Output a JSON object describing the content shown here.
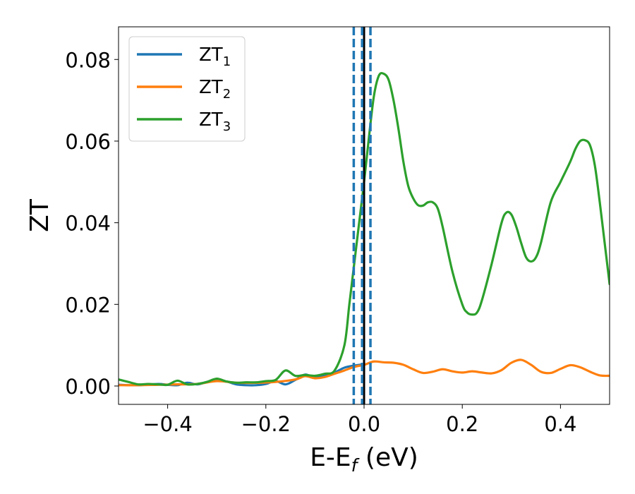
{
  "chart_data": {
    "type": "line",
    "title": "",
    "xlabel": {
      "main": "E-E",
      "sub": "f",
      "unit": " (eV)"
    },
    "ylabel": "ZT",
    "xlim": [
      -0.5,
      0.5
    ],
    "ylim": [
      -0.0045,
      0.088
    ],
    "xticks": [
      -0.4,
      -0.2,
      0.0,
      0.2,
      0.4
    ],
    "xtick_labels": [
      "−0.4",
      "−0.2",
      "0.0",
      "0.2",
      "0.4"
    ],
    "yticks": [
      0.0,
      0.02,
      0.04,
      0.06,
      0.08
    ],
    "ytick_labels": [
      "0.00",
      "0.02",
      "0.04",
      "0.06",
      "0.08"
    ],
    "grid": false,
    "legend_position": "top-left",
    "series": [
      {
        "name": "ZT",
        "subscript": "1",
        "color": "#1f77b4",
        "points": [
          [
            -0.5,
            0.0003
          ],
          [
            -0.46,
            0.0002
          ],
          [
            -0.42,
            0.0005
          ],
          [
            -0.4,
            0.0003
          ],
          [
            -0.38,
            0.0002
          ],
          [
            -0.36,
            0.0008
          ],
          [
            -0.34,
            0.0004
          ],
          [
            -0.32,
            0.001
          ],
          [
            -0.3,
            0.0016
          ],
          [
            -0.28,
            0.0011
          ],
          [
            -0.26,
            0.0004
          ],
          [
            -0.24,
            0.0002
          ],
          [
            -0.22,
            0.0002
          ],
          [
            -0.2,
            0.0005
          ],
          [
            -0.18,
            0.0012
          ],
          [
            -0.16,
            0.0004
          ],
          [
            -0.14,
            0.0015
          ],
          [
            -0.12,
            0.0028
          ],
          [
            -0.1,
            0.002
          ],
          [
            -0.08,
            0.0025
          ],
          [
            -0.06,
            0.0033
          ],
          [
            -0.04,
            0.0045
          ],
          [
            -0.02,
            0.005
          ],
          [
            0.0,
            0.0053
          ]
        ]
      },
      {
        "name": "ZT",
        "subscript": "2",
        "color": "#ff7f0e",
        "points": [
          [
            -0.5,
            0.0002
          ],
          [
            -0.46,
            0.0002
          ],
          [
            -0.42,
            0.0003
          ],
          [
            -0.38,
            0.0004
          ],
          [
            -0.34,
            0.0005
          ],
          [
            -0.3,
            0.0012
          ],
          [
            -0.26,
            0.0008
          ],
          [
            -0.22,
            0.0008
          ],
          [
            -0.18,
            0.001
          ],
          [
            -0.14,
            0.0016
          ],
          [
            -0.12,
            0.0024
          ],
          [
            -0.1,
            0.0019
          ],
          [
            -0.08,
            0.0022
          ],
          [
            -0.06,
            0.003
          ],
          [
            -0.04,
            0.0038
          ],
          [
            -0.02,
            0.0047
          ],
          [
            0.0,
            0.0052
          ],
          [
            0.02,
            0.006
          ],
          [
            0.04,
            0.0058
          ],
          [
            0.06,
            0.0057
          ],
          [
            0.08,
            0.0052
          ],
          [
            0.1,
            0.0041
          ],
          [
            0.12,
            0.0032
          ],
          [
            0.14,
            0.0035
          ],
          [
            0.16,
            0.0041
          ],
          [
            0.18,
            0.0036
          ],
          [
            0.2,
            0.0033
          ],
          [
            0.22,
            0.0036
          ],
          [
            0.24,
            0.0033
          ],
          [
            0.26,
            0.0031
          ],
          [
            0.28,
            0.0039
          ],
          [
            0.3,
            0.0057
          ],
          [
            0.32,
            0.0064
          ],
          [
            0.34,
            0.0052
          ],
          [
            0.36,
            0.0035
          ],
          [
            0.38,
            0.0032
          ],
          [
            0.4,
            0.0042
          ],
          [
            0.42,
            0.0051
          ],
          [
            0.44,
            0.0046
          ],
          [
            0.46,
            0.0035
          ],
          [
            0.48,
            0.0026
          ],
          [
            0.5,
            0.0025
          ]
        ]
      },
      {
        "name": "ZT",
        "subscript": "3",
        "color": "#2ca02c",
        "points": [
          [
            -0.5,
            0.0016
          ],
          [
            -0.48,
            0.001
          ],
          [
            -0.46,
            0.0004
          ],
          [
            -0.44,
            0.0005
          ],
          [
            -0.42,
            0.0004
          ],
          [
            -0.4,
            0.0003
          ],
          [
            -0.38,
            0.0013
          ],
          [
            -0.36,
            0.0004
          ],
          [
            -0.34,
            0.0005
          ],
          [
            -0.32,
            0.001
          ],
          [
            -0.3,
            0.0018
          ],
          [
            -0.28,
            0.0011
          ],
          [
            -0.26,
            0.0008
          ],
          [
            -0.24,
            0.0009
          ],
          [
            -0.22,
            0.0009
          ],
          [
            -0.2,
            0.0012
          ],
          [
            -0.18,
            0.0015
          ],
          [
            -0.16,
            0.0038
          ],
          [
            -0.14,
            0.0025
          ],
          [
            -0.12,
            0.0027
          ],
          [
            -0.1,
            0.0025
          ],
          [
            -0.08,
            0.003
          ],
          [
            -0.06,
            0.0038
          ],
          [
            -0.04,
            0.01
          ],
          [
            -0.03,
            0.02
          ],
          [
            -0.02,
            0.03
          ],
          [
            -0.01,
            0.04
          ],
          [
            0.0,
            0.05
          ],
          [
            0.01,
            0.061
          ],
          [
            0.02,
            0.071
          ],
          [
            0.03,
            0.076
          ],
          [
            0.04,
            0.0765
          ],
          [
            0.05,
            0.075
          ],
          [
            0.06,
            0.07
          ],
          [
            0.07,
            0.063
          ],
          [
            0.08,
            0.055
          ],
          [
            0.09,
            0.049
          ],
          [
            0.1,
            0.046
          ],
          [
            0.11,
            0.0443
          ],
          [
            0.12,
            0.0442
          ],
          [
            0.13,
            0.045
          ],
          [
            0.14,
            0.045
          ],
          [
            0.15,
            0.0435
          ],
          [
            0.16,
            0.039
          ],
          [
            0.18,
            0.028
          ],
          [
            0.2,
            0.02
          ],
          [
            0.21,
            0.018
          ],
          [
            0.22,
            0.0175
          ],
          [
            0.23,
            0.018
          ],
          [
            0.24,
            0.021
          ],
          [
            0.26,
            0.03
          ],
          [
            0.28,
            0.04
          ],
          [
            0.29,
            0.0425
          ],
          [
            0.3,
            0.042
          ],
          [
            0.31,
            0.039
          ],
          [
            0.32,
            0.035
          ],
          [
            0.33,
            0.0315
          ],
          [
            0.34,
            0.0305
          ],
          [
            0.35,
            0.0315
          ],
          [
            0.36,
            0.035
          ],
          [
            0.38,
            0.045
          ],
          [
            0.4,
            0.05
          ],
          [
            0.42,
            0.055
          ],
          [
            0.43,
            0.058
          ],
          [
            0.44,
            0.06
          ],
          [
            0.45,
            0.0602
          ],
          [
            0.46,
            0.059
          ],
          [
            0.47,
            0.054
          ],
          [
            0.48,
            0.045
          ],
          [
            0.49,
            0.035
          ],
          [
            0.5,
            0.025
          ]
        ]
      }
    ],
    "vlines": [
      {
        "x": 0.0,
        "style": "solid",
        "color": "#000000"
      },
      {
        "x": -0.021,
        "style": "dashed",
        "color": "#1f77b4"
      },
      {
        "x": -0.004,
        "style": "dashed",
        "color": "#1f77b4"
      },
      {
        "x": 0.013,
        "style": "dashed",
        "color": "#1f77b4"
      }
    ]
  }
}
